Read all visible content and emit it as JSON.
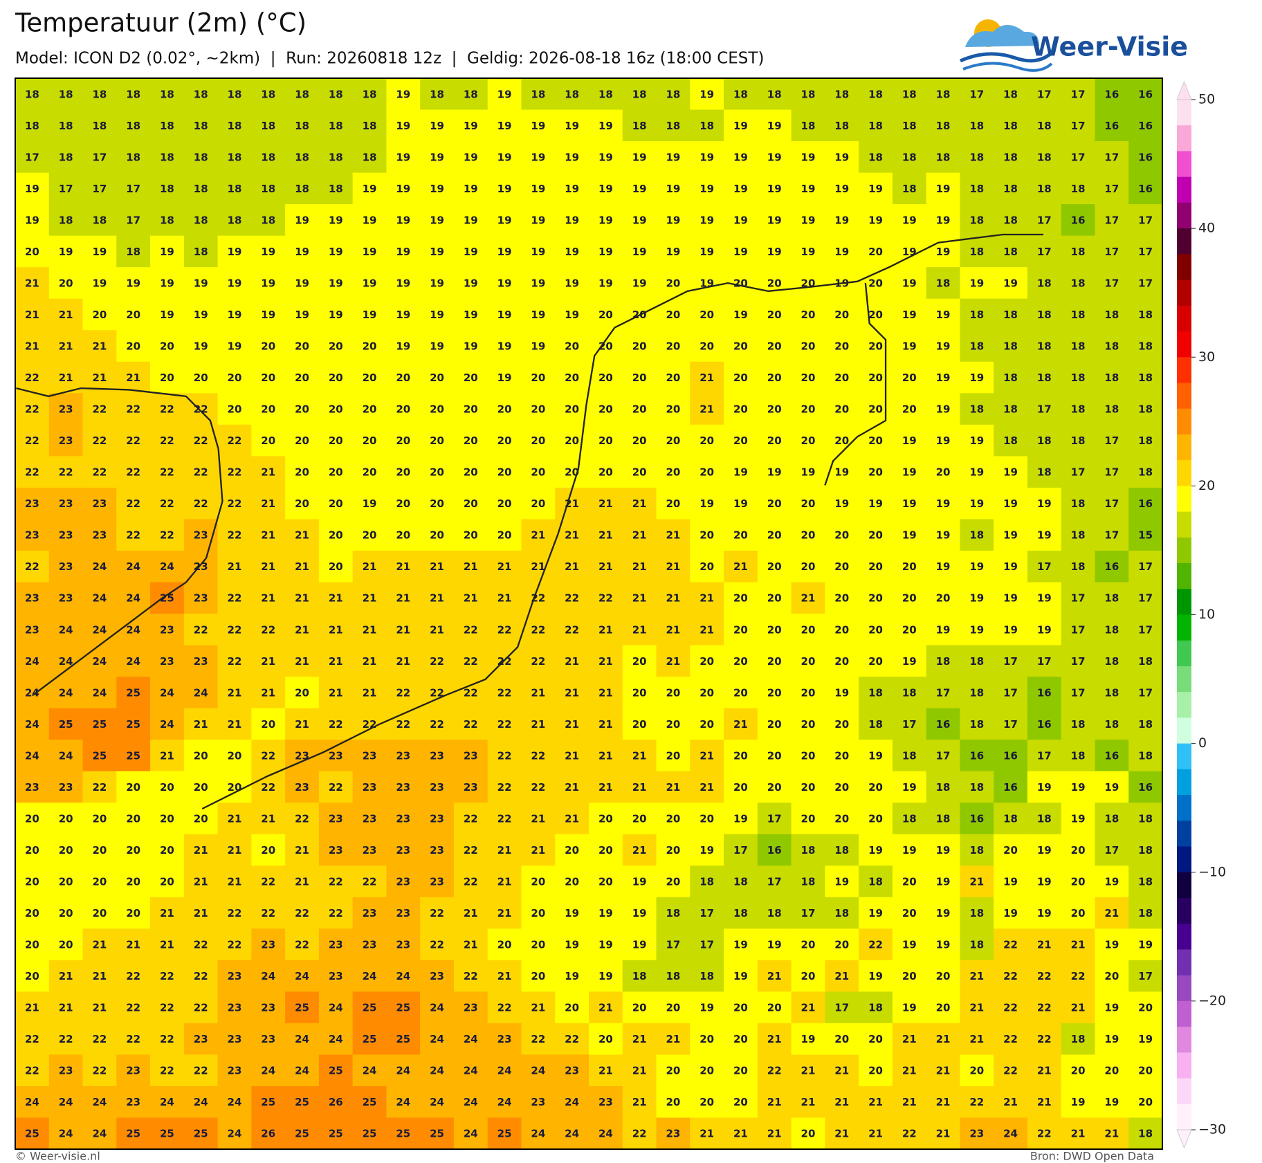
{
  "header": {
    "title": "Temperatuur (2m) (°C)",
    "subtitle": "Model: ICON D2 (0.02°, ~2km)  |  Run: 20260818 12z  |  Geldig: 2026-08-18 16z (18:00 CEST)"
  },
  "logo": "Weer-Visie",
  "grid": [
    [
      18,
      18,
      18,
      18,
      18,
      18,
      18,
      18,
      18,
      18,
      18,
      19,
      18,
      18,
      19,
      18,
      18,
      18,
      18,
      18,
      19,
      18,
      18,
      18,
      18,
      18,
      18,
      18,
      17,
      18,
      17,
      17,
      16,
      16
    ],
    [
      18,
      18,
      18,
      18,
      18,
      18,
      18,
      18,
      18,
      18,
      18,
      19,
      19,
      19,
      19,
      19,
      19,
      19,
      18,
      18,
      18,
      19,
      19,
      18,
      18,
      18,
      18,
      18,
      18,
      18,
      18,
      17,
      16,
      16
    ],
    [
      17,
      18,
      17,
      18,
      18,
      18,
      18,
      18,
      18,
      18,
      18,
      19,
      19,
      19,
      19,
      19,
      19,
      19,
      19,
      19,
      19,
      19,
      19,
      19,
      19,
      18,
      18,
      18,
      18,
      18,
      18,
      17,
      17,
      16
    ],
    [
      19,
      17,
      17,
      17,
      18,
      18,
      18,
      18,
      18,
      18,
      19,
      19,
      19,
      19,
      19,
      19,
      19,
      19,
      19,
      19,
      19,
      19,
      19,
      19,
      19,
      19,
      18,
      19,
      18,
      18,
      18,
      18,
      17,
      16
    ],
    [
      19,
      18,
      18,
      17,
      18,
      18,
      18,
      18,
      19,
      19,
      19,
      19,
      19,
      19,
      19,
      19,
      19,
      19,
      19,
      19,
      19,
      19,
      19,
      19,
      19,
      19,
      19,
      19,
      18,
      18,
      17,
      16,
      17,
      17
    ],
    [
      20,
      19,
      19,
      18,
      19,
      18,
      19,
      19,
      19,
      19,
      19,
      19,
      19,
      19,
      19,
      19,
      19,
      19,
      19,
      19,
      19,
      19,
      19,
      19,
      19,
      20,
      19,
      19,
      18,
      18,
      17,
      18,
      17,
      17
    ],
    [
      21,
      20,
      19,
      19,
      19,
      19,
      19,
      19,
      19,
      19,
      19,
      19,
      19,
      19,
      19,
      19,
      19,
      19,
      19,
      20,
      19,
      20,
      20,
      20,
      19,
      20,
      19,
      18,
      19,
      19,
      18,
      18,
      17,
      17
    ],
    [
      21,
      21,
      20,
      20,
      19,
      19,
      19,
      19,
      19,
      19,
      19,
      19,
      19,
      19,
      19,
      19,
      19,
      20,
      20,
      20,
      20,
      19,
      20,
      20,
      20,
      20,
      19,
      19,
      18,
      18,
      18,
      18,
      18,
      18
    ],
    [
      21,
      21,
      21,
      20,
      20,
      19,
      19,
      20,
      20,
      20,
      20,
      19,
      19,
      19,
      19,
      19,
      20,
      20,
      20,
      20,
      20,
      20,
      20,
      20,
      20,
      20,
      19,
      19,
      18,
      18,
      18,
      18,
      18,
      18
    ],
    [
      22,
      21,
      21,
      21,
      20,
      20,
      20,
      20,
      20,
      20,
      20,
      20,
      20,
      20,
      19,
      20,
      20,
      20,
      20,
      20,
      21,
      20,
      20,
      20,
      20,
      20,
      20,
      19,
      19,
      18,
      18,
      18,
      18,
      18
    ],
    [
      22,
      23,
      22,
      22,
      22,
      22,
      20,
      20,
      20,
      20,
      20,
      20,
      20,
      20,
      20,
      20,
      20,
      20,
      20,
      20,
      21,
      20,
      20,
      20,
      20,
      20,
      20,
      19,
      18,
      18,
      17,
      18,
      18,
      18
    ],
    [
      22,
      23,
      22,
      22,
      22,
      22,
      22,
      20,
      20,
      20,
      20,
      20,
      20,
      20,
      20,
      20,
      20,
      20,
      20,
      20,
      20,
      20,
      20,
      20,
      20,
      20,
      19,
      19,
      19,
      18,
      18,
      18,
      17,
      18
    ],
    [
      22,
      22,
      22,
      22,
      22,
      22,
      22,
      21,
      20,
      20,
      20,
      20,
      20,
      20,
      20,
      20,
      20,
      20,
      20,
      20,
      20,
      19,
      19,
      19,
      19,
      20,
      19,
      20,
      19,
      19,
      18,
      17,
      17,
      18
    ],
    [
      23,
      23,
      23,
      22,
      22,
      22,
      22,
      21,
      20,
      20,
      19,
      20,
      20,
      20,
      20,
      20,
      21,
      21,
      21,
      20,
      19,
      19,
      20,
      20,
      19,
      19,
      19,
      19,
      19,
      19,
      19,
      18,
      17,
      16
    ],
    [
      23,
      23,
      23,
      22,
      22,
      23,
      22,
      21,
      21,
      20,
      20,
      20,
      20,
      20,
      20,
      21,
      21,
      21,
      21,
      21,
      20,
      20,
      20,
      20,
      20,
      20,
      19,
      19,
      18,
      19,
      19,
      18,
      17,
      15
    ],
    [
      22,
      23,
      24,
      24,
      24,
      23,
      21,
      21,
      21,
      20,
      21,
      21,
      21,
      21,
      21,
      21,
      21,
      21,
      21,
      21,
      20,
      21,
      20,
      20,
      20,
      20,
      20,
      19,
      19,
      19,
      17,
      18,
      16,
      17
    ],
    [
      23,
      23,
      24,
      24,
      25,
      23,
      22,
      21,
      21,
      21,
      21,
      21,
      21,
      21,
      21,
      22,
      22,
      22,
      21,
      21,
      21,
      20,
      20,
      21,
      20,
      20,
      20,
      20,
      19,
      19,
      19,
      17,
      18,
      17
    ],
    [
      23,
      24,
      24,
      24,
      23,
      22,
      22,
      22,
      21,
      21,
      21,
      21,
      21,
      22,
      22,
      22,
      22,
      21,
      21,
      21,
      21,
      20,
      20,
      20,
      20,
      20,
      20,
      19,
      19,
      19,
      19,
      17,
      18,
      17
    ],
    [
      24,
      24,
      24,
      24,
      23,
      23,
      22,
      21,
      21,
      21,
      21,
      21,
      22,
      22,
      22,
      22,
      21,
      21,
      20,
      21,
      20,
      20,
      20,
      20,
      20,
      20,
      19,
      18,
      18,
      17,
      17,
      17,
      18,
      18
    ],
    [
      24,
      24,
      24,
      25,
      24,
      24,
      21,
      21,
      20,
      21,
      21,
      22,
      22,
      22,
      22,
      21,
      21,
      21,
      20,
      20,
      20,
      20,
      20,
      20,
      19,
      18,
      18,
      17,
      18,
      17,
      16,
      17,
      18,
      17
    ],
    [
      24,
      25,
      25,
      25,
      24,
      21,
      21,
      20,
      21,
      22,
      22,
      22,
      22,
      22,
      22,
      21,
      21,
      21,
      20,
      20,
      20,
      21,
      20,
      20,
      20,
      18,
      17,
      16,
      18,
      17,
      16,
      18,
      18,
      18
    ],
    [
      24,
      24,
      25,
      25,
      21,
      20,
      20,
      22,
      23,
      23,
      23,
      23,
      23,
      23,
      22,
      22,
      21,
      21,
      21,
      20,
      21,
      20,
      20,
      20,
      20,
      19,
      18,
      17,
      16,
      16,
      17,
      18,
      16,
      18
    ],
    [
      23,
      23,
      22,
      20,
      20,
      20,
      20,
      22,
      23,
      22,
      23,
      23,
      23,
      23,
      22,
      22,
      21,
      21,
      21,
      21,
      21,
      20,
      20,
      20,
      20,
      20,
      19,
      18,
      18,
      16,
      19,
      19,
      19,
      16
    ],
    [
      20,
      20,
      20,
      20,
      20,
      20,
      21,
      21,
      22,
      23,
      23,
      23,
      23,
      22,
      22,
      21,
      21,
      20,
      20,
      20,
      20,
      19,
      17,
      20,
      20,
      20,
      18,
      18,
      16,
      18,
      18,
      19,
      18,
      18
    ],
    [
      20,
      20,
      20,
      20,
      20,
      21,
      21,
      20,
      21,
      23,
      23,
      23,
      23,
      22,
      21,
      21,
      20,
      20,
      21,
      20,
      19,
      17,
      16,
      18,
      18,
      19,
      19,
      19,
      18,
      20,
      19,
      20,
      17,
      18
    ],
    [
      20,
      20,
      20,
      20,
      20,
      21,
      21,
      22,
      21,
      22,
      22,
      23,
      23,
      22,
      21,
      20,
      20,
      20,
      19,
      20,
      18,
      18,
      17,
      18,
      19,
      18,
      20,
      19,
      21,
      19,
      19,
      20,
      19,
      18
    ],
    [
      20,
      20,
      20,
      20,
      21,
      21,
      22,
      22,
      22,
      22,
      23,
      23,
      22,
      21,
      21,
      20,
      19,
      19,
      19,
      18,
      17,
      18,
      18,
      17,
      18,
      19,
      20,
      19,
      18,
      19,
      19,
      20,
      21,
      18
    ],
    [
      20,
      20,
      21,
      21,
      21,
      22,
      22,
      23,
      22,
      23,
      23,
      23,
      22,
      21,
      20,
      20,
      19,
      19,
      19,
      17,
      17,
      19,
      19,
      20,
      20,
      22,
      19,
      19,
      18,
      22,
      21,
      21,
      19,
      19
    ],
    [
      20,
      21,
      21,
      22,
      22,
      22,
      23,
      24,
      24,
      23,
      24,
      24,
      23,
      22,
      21,
      20,
      19,
      19,
      18,
      18,
      18,
      19,
      21,
      20,
      21,
      19,
      20,
      20,
      21,
      22,
      22,
      22,
      20,
      17
    ],
    [
      21,
      21,
      21,
      22,
      22,
      22,
      23,
      23,
      25,
      24,
      25,
      25,
      24,
      23,
      22,
      21,
      20,
      21,
      20,
      20,
      19,
      20,
      20,
      21,
      17,
      18,
      19,
      20,
      21,
      22,
      22,
      21,
      19,
      20
    ],
    [
      22,
      22,
      22,
      22,
      22,
      23,
      23,
      23,
      24,
      24,
      25,
      25,
      24,
      24,
      23,
      22,
      22,
      20,
      21,
      21,
      20,
      20,
      21,
      19,
      20,
      20,
      21,
      21,
      21,
      22,
      22,
      18,
      19,
      19
    ],
    [
      22,
      23,
      22,
      23,
      22,
      22,
      23,
      24,
      24,
      25,
      24,
      24,
      24,
      24,
      24,
      24,
      23,
      21,
      21,
      20,
      20,
      20,
      22,
      21,
      21,
      20,
      21,
      21,
      20,
      22,
      21,
      20,
      20,
      20
    ],
    [
      24,
      24,
      24,
      23,
      24,
      24,
      24,
      25,
      25,
      26,
      25,
      24,
      24,
      24,
      24,
      23,
      24,
      23,
      21,
      20,
      20,
      20,
      21,
      21,
      21,
      21,
      21,
      21,
      22,
      21,
      21,
      19,
      19,
      20
    ],
    [
      25,
      24,
      24,
      25,
      25,
      25,
      24,
      26,
      25,
      25,
      25,
      25,
      25,
      24,
      25,
      24,
      24,
      24,
      22,
      23,
      21,
      21,
      21,
      20,
      21,
      21,
      22,
      21,
      23,
      24,
      22,
      21,
      21,
      18
    ]
  ],
  "colorbar": {
    "lim": [
      -30,
      50
    ],
    "ticks": [
      50,
      40,
      30,
      20,
      10,
      0,
      {
        "value": -10,
        "label": "−10"
      },
      {
        "value": -20,
        "label": "−20"
      },
      {
        "value": -30,
        "label": "−30"
      }
    ],
    "colors": [
      "#fde0f0",
      "#f9a8d8",
      "#f050d0",
      "#c000b0",
      "#900070",
      "#500030",
      "#800000",
      "#b00000",
      "#d80000",
      "#f00000",
      "#ff3000",
      "#ff6000",
      "#ff8c00",
      "#ffb400",
      "#ffd700",
      "#ffff00",
      "#c8dc00",
      "#90c800",
      "#50b400",
      "#009600",
      "#00b400",
      "#40c850",
      "#78dc78",
      "#a8f0a8",
      "#d0ffe0",
      "#30c0f8",
      "#00a0e0",
      "#0070c8",
      "#0040a0",
      "#001880",
      "#100040",
      "#280060",
      "#480090",
      "#7030b0",
      "#9848c0",
      "#c060d0",
      "#e088e0",
      "#f8b0f0",
      "#fcd8f8",
      "#fff0fc"
    ]
  },
  "footer": {
    "left": "© Weer-visie.nl",
    "right": "Bron: DWD Open Data"
  }
}
